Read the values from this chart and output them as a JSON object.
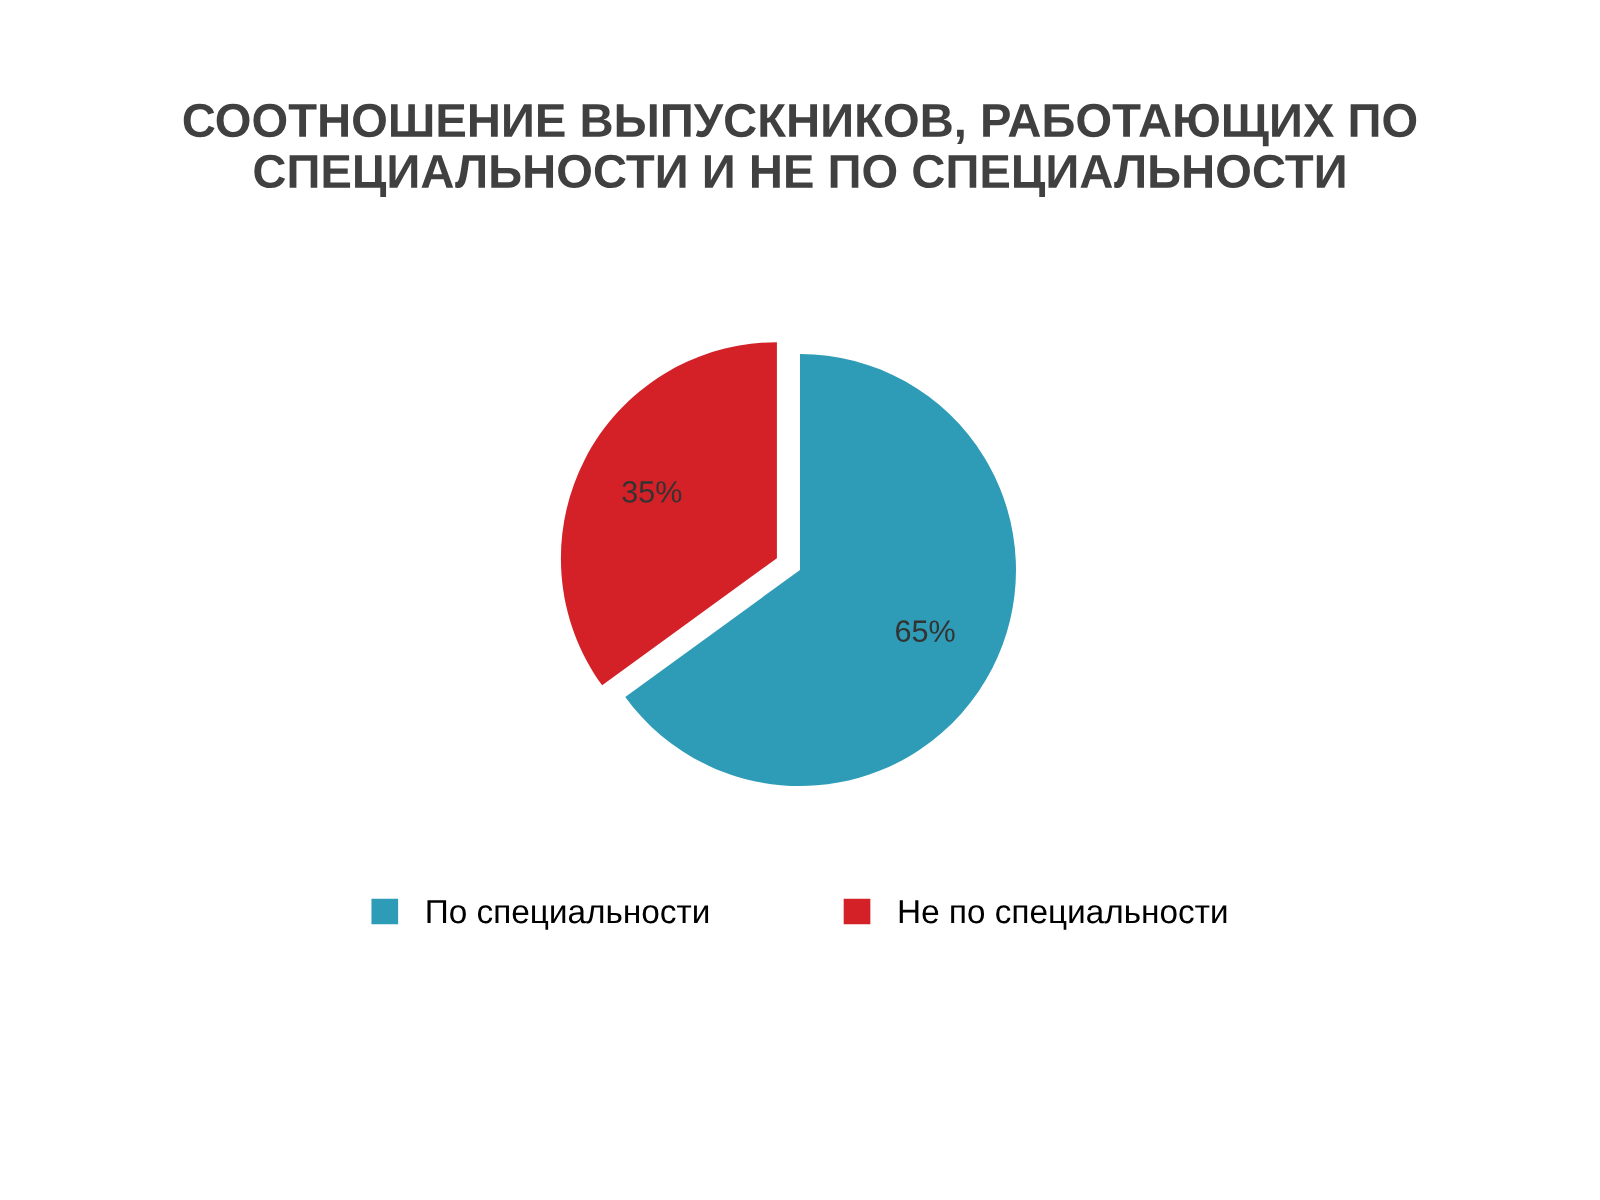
{
  "chart_data": {
    "type": "pie",
    "title": "СООТНОШЕНИЕ ВЫПУСКНИКОВ, РАБОТАЮЩИХ ПО СПЕЦИАЛЬНОСТИ И НЕ ПО СПЕЦИАЛЬНОСТИ",
    "categories": [
      "По специальности",
      "Не по специальности"
    ],
    "values": [
      65,
      35
    ],
    "colors": [
      "#2e9bb7",
      "#d42027"
    ],
    "value_labels": [
      "65%",
      "35%"
    ],
    "legend": "bottom"
  }
}
